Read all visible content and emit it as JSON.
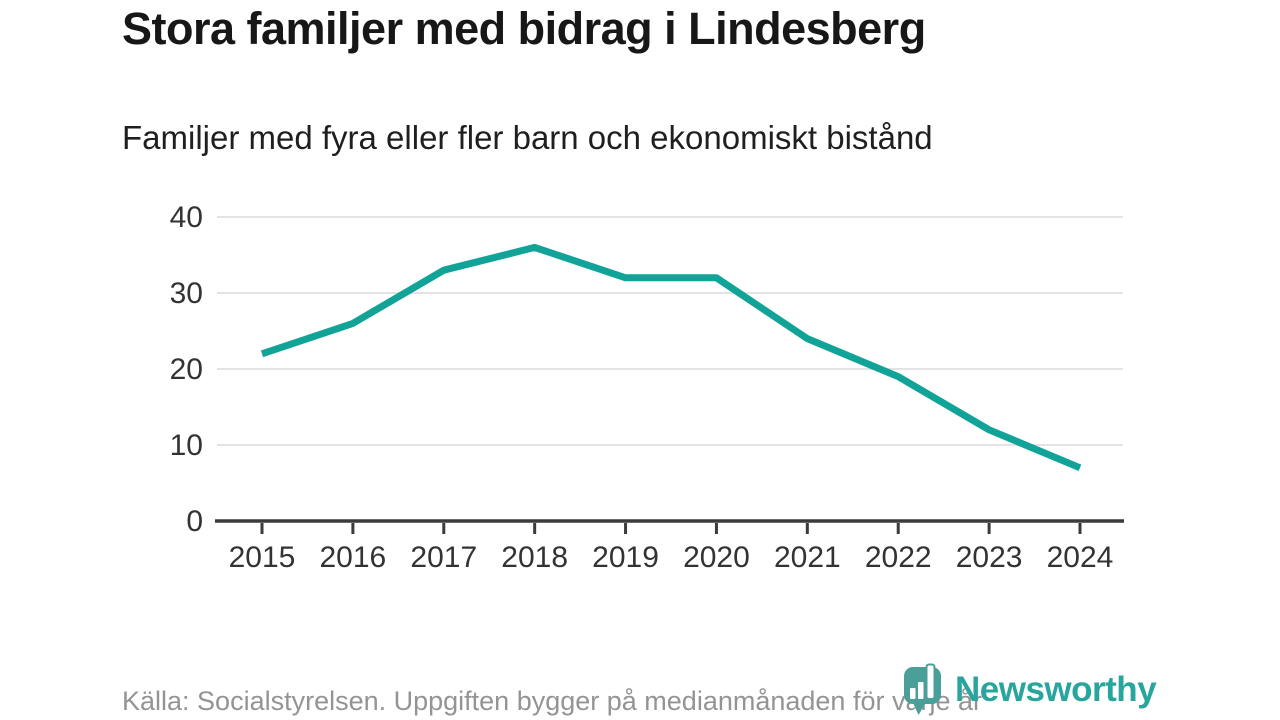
{
  "header": {
    "title": "Stora familjer med bidrag i Lindesberg",
    "subtitle": "Familjer med fyra eller fler barn och ekonomiskt bistånd"
  },
  "chart_data": {
    "type": "line",
    "title": "Stora familjer med bidrag i Lindesberg",
    "subtitle": "Familjer med fyra eller fler barn och ekonomiskt bistånd",
    "x": [
      2015,
      2016,
      2017,
      2018,
      2019,
      2020,
      2021,
      2022,
      2023,
      2024
    ],
    "series": [
      {
        "name": "Familjer med fyra eller fler barn och ekonomiskt bistånd",
        "values": [
          22,
          26,
          33,
          36,
          32,
          32,
          24,
          19,
          12,
          7
        ]
      }
    ],
    "xlabel": "",
    "ylabel": "",
    "ylim": [
      0,
      40
    ],
    "yticks": [
      0,
      10,
      20,
      30,
      40
    ],
    "grid": "horizontal",
    "legend": "none",
    "line_color": "#12a398"
  },
  "footer": {
    "source": "Källa: Socialstyrelsen. Uppgiften bygger på medianmånaden för varje år",
    "brand": "Newsworthy"
  },
  "colors": {
    "accent": "#12a398",
    "logo_fill": "#4a9f99",
    "brand_text": "#28a69e",
    "gridline": "#e3e3e3",
    "axis": "#3b3b3b",
    "title_text": "#171717",
    "tick_text": "#333333",
    "muted_text": "#949494"
  }
}
